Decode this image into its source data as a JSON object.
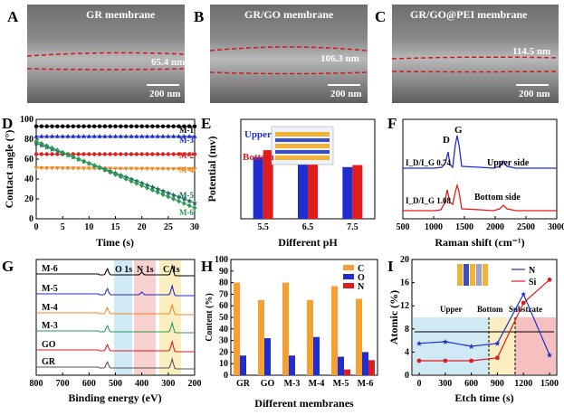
{
  "panels": {
    "A": {
      "letter": "A",
      "title": "GR membrane",
      "thickness": "65.4 nm",
      "scale": "200 nm"
    },
    "B": {
      "letter": "B",
      "title": "GR/GO membrane",
      "thickness": "106.3 nm",
      "scale": "200 nm"
    },
    "C": {
      "letter": "C",
      "title": "GR/GO@PEI membrane",
      "thickness": "114.5 nm",
      "scale": "200 nm"
    }
  },
  "chart_data": [
    {
      "id": "D",
      "type": "line",
      "letter": "D",
      "xlabel": "Time (s)",
      "ylabel": "Contact angle (°)",
      "xlim": [
        0,
        30
      ],
      "ylim": [
        0,
        100
      ],
      "xticks": [
        "0",
        "5",
        "10",
        "15",
        "20",
        "25",
        "30"
      ],
      "yticks": [
        "0",
        "20",
        "40",
        "60",
        "80",
        "100"
      ],
      "series": [
        {
          "name": "M-1",
          "color": "#000000",
          "marker": "circle",
          "x": [
            0,
            30
          ],
          "y": [
            93,
            93
          ]
        },
        {
          "name": "M-3",
          "color": "#1f2dd1",
          "marker": "triangle",
          "x": [
            0,
            30
          ],
          "y": [
            83,
            83
          ]
        },
        {
          "name": "M-2",
          "color": "#e02020",
          "marker": "circle",
          "x": [
            0,
            30
          ],
          "y": [
            65,
            65
          ]
        },
        {
          "name": "M-4",
          "color": "#f08a24",
          "marker": "triangle-down",
          "x": [
            0,
            30
          ],
          "y": [
            51,
            50
          ]
        },
        {
          "name": "M-5",
          "color": "#1d6c5e",
          "marker": "star",
          "x": [
            0,
            30
          ],
          "y": [
            76,
            16
          ]
        },
        {
          "name": "M-6",
          "color": "#2a9c52",
          "marker": "diamond",
          "x": [
            0,
            30
          ],
          "y": [
            78,
            11
          ]
        }
      ]
    },
    {
      "id": "E",
      "type": "bar",
      "letter": "E",
      "xlabel": "Different pH",
      "ylabel": "Potential (mv)",
      "categories": [
        "5.5",
        "6.5",
        "7.5"
      ],
      "ylim": [
        0,
        50
      ],
      "series": [
        {
          "name": "Upper",
          "color": "#1f2dd1",
          "values": [
            31,
            28.5,
            26
          ]
        },
        {
          "name": "Bottom",
          "color": "#e01c1c",
          "values": [
            34.5,
            29.5,
            27
          ]
        }
      ]
    },
    {
      "id": "F",
      "type": "line",
      "letter": "F",
      "xlabel": "Raman shift (cm⁻¹)",
      "xlim": [
        500,
        3000
      ],
      "xticks": [
        "500",
        "1000",
        "1500",
        "2000",
        "2500",
        "3000"
      ],
      "peaks": [
        "D",
        "G"
      ],
      "series": [
        {
          "name": "Upper side",
          "color": "#1f2dd1",
          "ratio": "I_D/I_G 0.74"
        },
        {
          "name": "Bottom side",
          "color": "#e01c1c",
          "ratio": "I_D/I_G 1.08"
        }
      ]
    },
    {
      "id": "G",
      "type": "line",
      "letter": "G",
      "xlabel": "Binding energy (eV)",
      "xlim": [
        800,
        200
      ],
      "xticks": [
        "800",
        "700",
        "600",
        "500",
        "400",
        "300",
        "200"
      ],
      "regions": [
        "O 1s",
        "N 1s",
        "C 1s"
      ],
      "series": [
        {
          "name": "M-6",
          "color": "#000000"
        },
        {
          "name": "M-5",
          "color": "#1f2dd1"
        },
        {
          "name": "M-4",
          "color": "#f08a24"
        },
        {
          "name": "M-3",
          "color": "#2a9c52"
        },
        {
          "name": "GO",
          "color": "#e01c1c"
        },
        {
          "name": "GR",
          "color": "#555555"
        }
      ]
    },
    {
      "id": "H",
      "type": "bar",
      "letter": "H",
      "xlabel": "Different membranes",
      "ylabel": "Content (%)",
      "categories": [
        "GR",
        "GO",
        "M-3",
        "M-4",
        "M-5",
        "M-6"
      ],
      "ylim": [
        0,
        100
      ],
      "yticks": [
        "0",
        "10",
        "20",
        "30",
        "40",
        "50",
        "60",
        "70",
        "80",
        "90",
        "100"
      ],
      "series": [
        {
          "name": "C",
          "color": "#f5a030",
          "values": [
            80,
            65,
            80,
            65,
            77,
            66
          ]
        },
        {
          "name": "O",
          "color": "#1f2dd1",
          "values": [
            17,
            32,
            17,
            33,
            16,
            20
          ]
        },
        {
          "name": "N",
          "color": "#e01c1c",
          "values": [
            0,
            0,
            0,
            0,
            5,
            13
          ]
        }
      ]
    },
    {
      "id": "I",
      "type": "line",
      "letter": "I",
      "xlabel": "Etch time (s)",
      "ylabel": "Atomic (%)",
      "xlim": [
        0,
        1500
      ],
      "ylim": [
        0,
        20
      ],
      "xticks": [
        "0",
        "300",
        "600",
        "900",
        "1200",
        "1500"
      ],
      "yticks": [
        "0",
        "4",
        "8",
        "12",
        "16",
        "20"
      ],
      "regions": [
        "Upper",
        "Bottom",
        "Substrate"
      ],
      "series": [
        {
          "name": "N",
          "color": "#1f2dd1",
          "x": [
            0,
            300,
            600,
            900,
            1200,
            1500
          ],
          "y": [
            5.5,
            5.8,
            5,
            5.5,
            14,
            3.5
          ]
        },
        {
          "name": "Si",
          "color": "#e01c1c",
          "x": [
            0,
            300,
            600,
            900,
            1200,
            1500
          ],
          "y": [
            2.5,
            2.5,
            2.5,
            3,
            12.5,
            16.5
          ]
        }
      ]
    }
  ]
}
